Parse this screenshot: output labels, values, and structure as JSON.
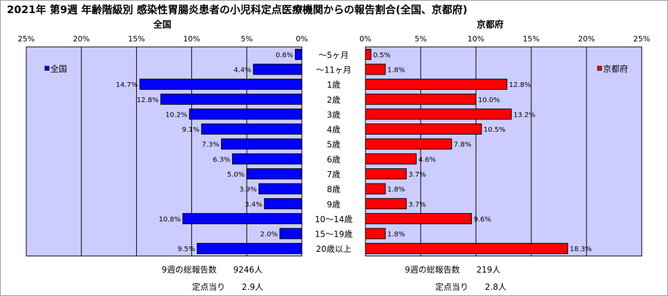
{
  "title": "2021年 第9週 年齢階級別 感染性胃腸炎患者の小児科定点医療機関からの報告割合(全国、京都府)",
  "chart_data": {
    "type": "bar",
    "orientation": "horizontal-butterfly",
    "categories": [
      "～5ヶ月",
      "～11ヶ月",
      "1歳",
      "2歳",
      "3歳",
      "4歳",
      "5歳",
      "6歳",
      "7歳",
      "8歳",
      "9歳",
      "10～14歳",
      "15～19歳",
      "20歳以上"
    ],
    "xlim": [
      0,
      25
    ],
    "ticks": [
      "0%",
      "5%",
      "10%",
      "15%",
      "20%",
      "25%"
    ],
    "tick_values": [
      0,
      5,
      10,
      15,
      20,
      25
    ],
    "series": [
      {
        "name": "全国",
        "panel_title": "全国",
        "side": "left",
        "color": "#0000ff",
        "values": [
          0.6,
          4.4,
          14.7,
          12.8,
          10.2,
          9.1,
          7.3,
          6.3,
          5.0,
          3.9,
          3.4,
          10.8,
          2.0,
          9.5
        ],
        "labels": [
          "0.6%",
          "4.4%",
          "14.7%",
          "12.8%",
          "10.2%",
          "9.1%",
          "7.3%",
          "6.3%",
          "5.0%",
          "3.9%",
          "3.4%",
          "10.8%",
          "2.0%",
          "9.5%"
        ]
      },
      {
        "name": "京都府",
        "panel_title": "京都府",
        "side": "right",
        "color": "#ff0000",
        "values": [
          0.5,
          1.8,
          12.8,
          10.0,
          13.2,
          10.5,
          7.8,
          4.6,
          3.7,
          1.8,
          3.7,
          9.6,
          1.8,
          18.3
        ],
        "labels": [
          "0.5%",
          "1.8%",
          "12.8%",
          "10.0%",
          "13.2%",
          "10.5%",
          "7.8%",
          "4.6%",
          "3.7%",
          "1.8%",
          "3.7%",
          "9.6%",
          "1.8%",
          "18.3%"
        ]
      }
    ],
    "grid": true,
    "plot_background": "#ccccff",
    "legend_placement": "top-left / top-right inside panels"
  },
  "summary": {
    "national_total": "9週の総報告数　　9246人",
    "national_per_site": "定点当り　　2.9人",
    "kyoto_total": "9週の総報告数　　219人",
    "kyoto_per_site": "定点当り　　2.8人"
  }
}
